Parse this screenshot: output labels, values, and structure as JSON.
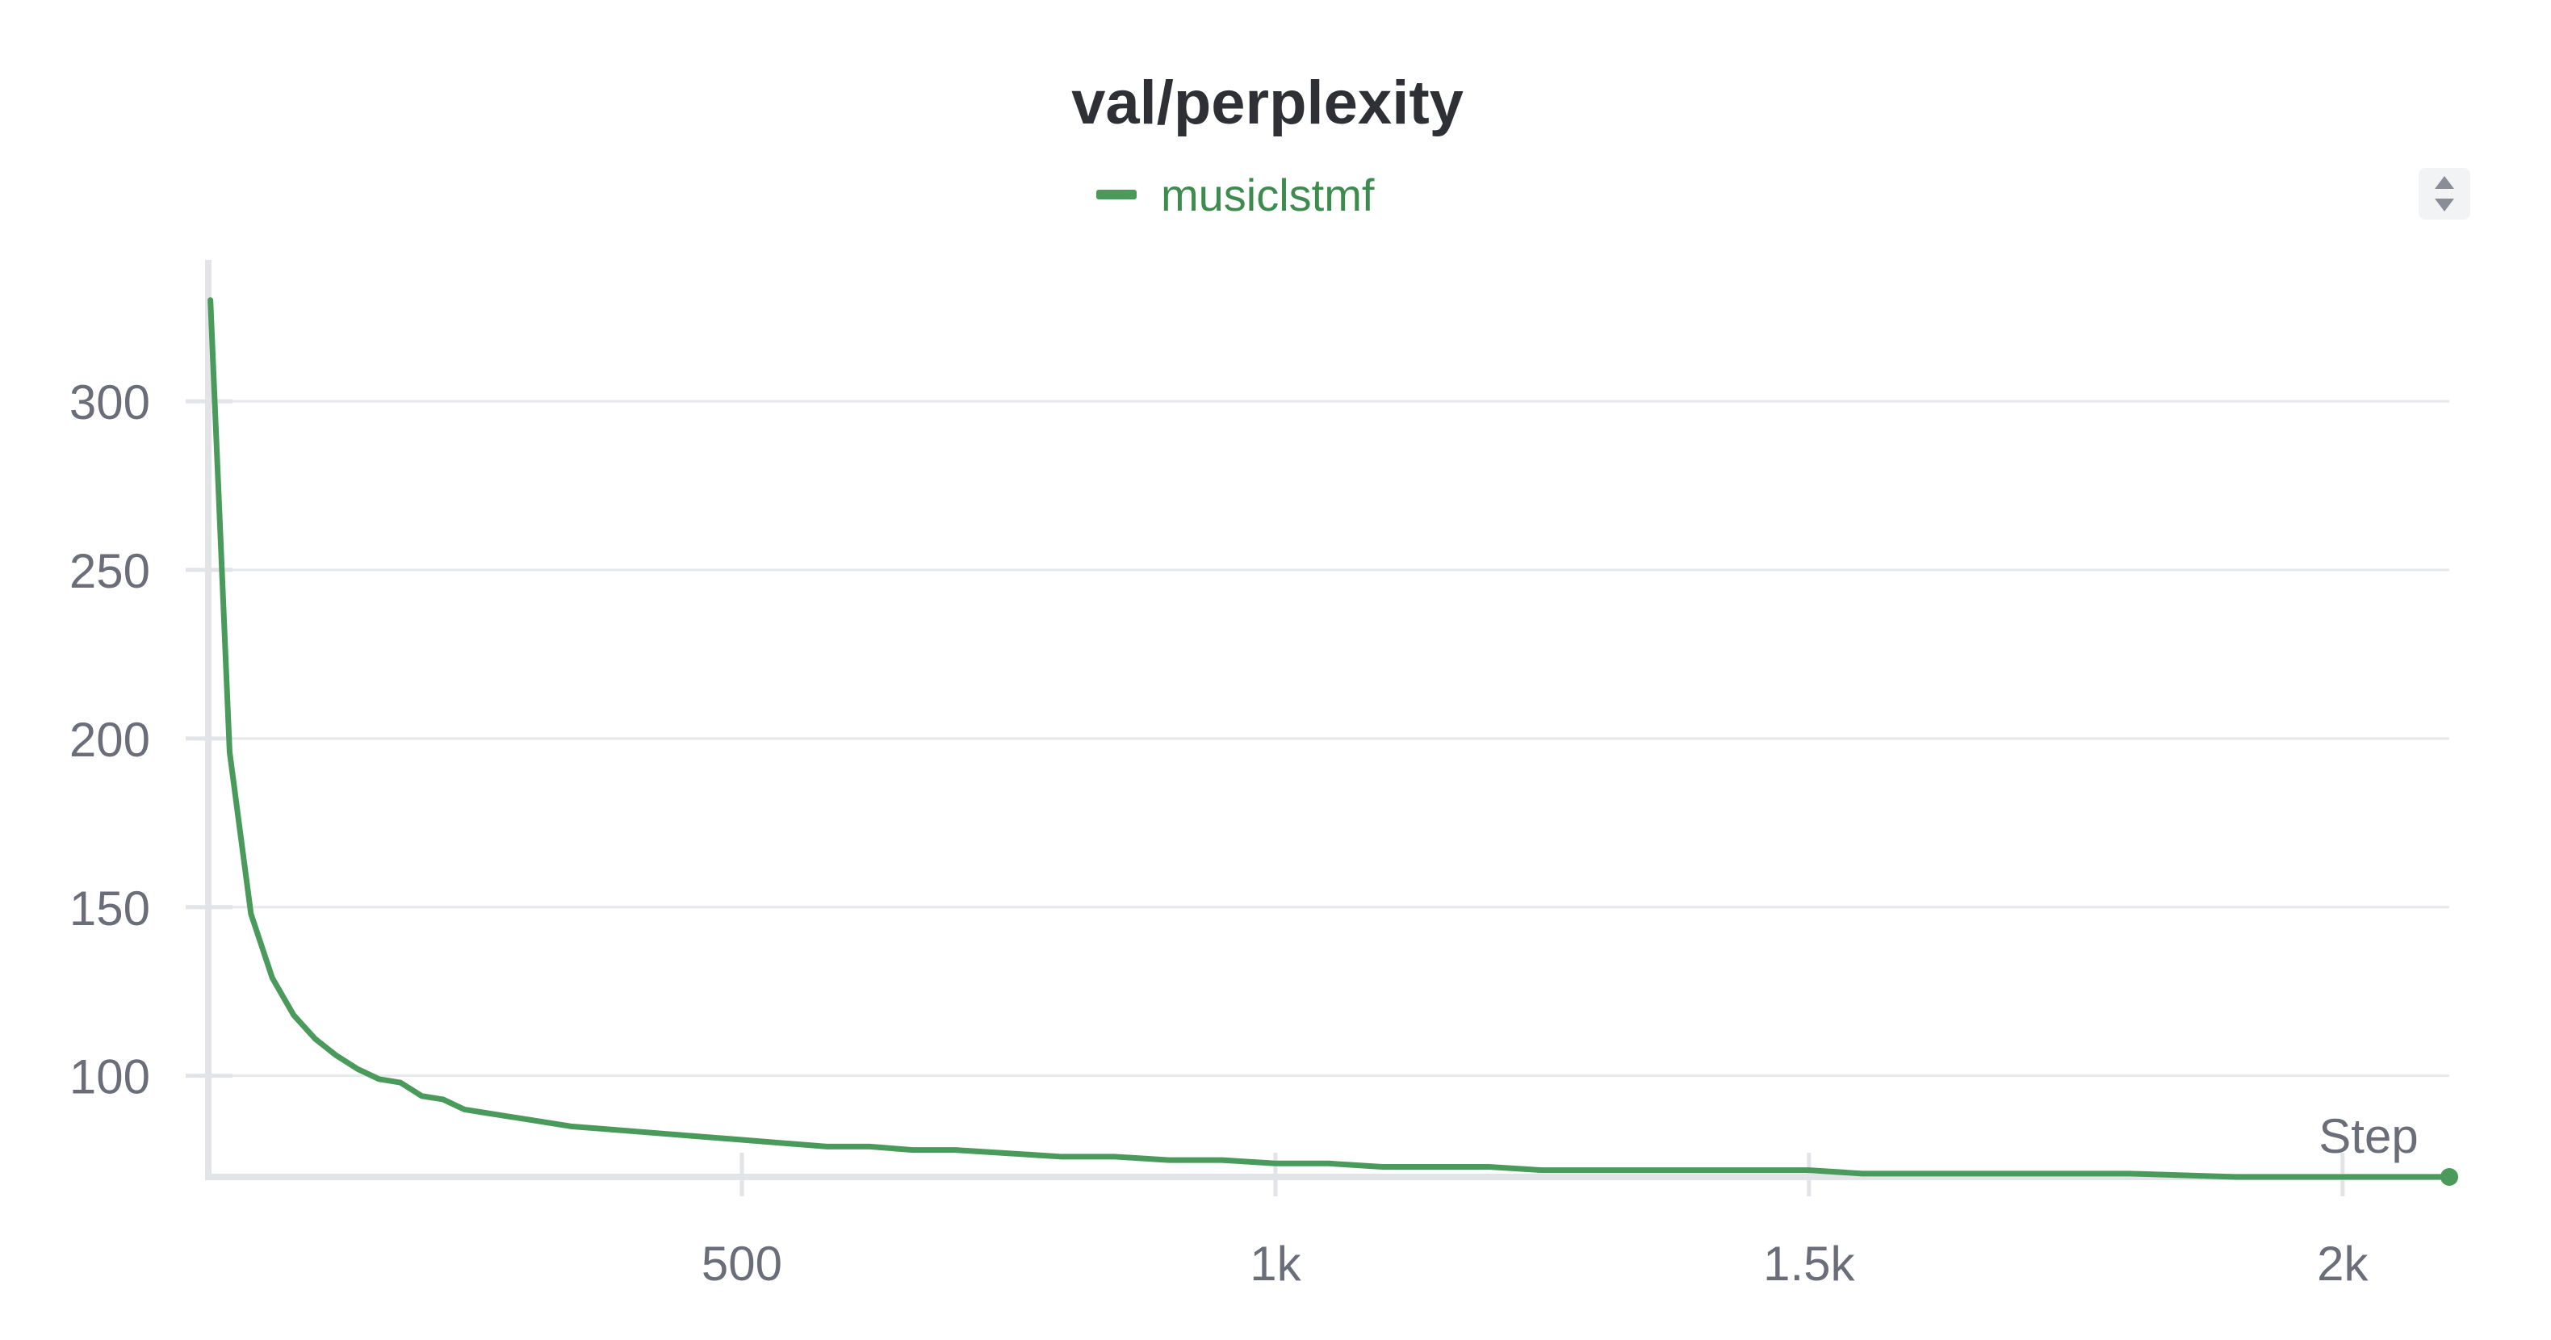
{
  "colors": {
    "series": "#4a9a5c",
    "legend_text": "#3d8b4f",
    "axis": "#e3e4e8",
    "grid": "#e7e8eb",
    "tick_text": "#6b6e78",
    "title": "#2f3035"
  },
  "controls": {
    "legend_sort_icon": "sort-up-down-icon"
  },
  "chart_data": {
    "type": "line",
    "title": "val/perplexity",
    "xlabel": "Step",
    "ylabel": "",
    "xlim": [
      0,
      2100
    ],
    "ylim": [
      70,
      340
    ],
    "x_ticks": [
      500,
      1000,
      1500,
      2000
    ],
    "x_tick_labels": [
      "500",
      "1k",
      "1.5k",
      "2k"
    ],
    "y_ticks": [
      100,
      150,
      200,
      250,
      300
    ],
    "y_tick_labels": [
      "100",
      "150",
      "200",
      "250",
      "300"
    ],
    "grid": "horizontal",
    "legend_position": "top-center",
    "series": [
      {
        "name": "musiclstmf",
        "color": "#4a9a5c",
        "x": [
          2,
          20,
          40,
          60,
          80,
          100,
          120,
          140,
          160,
          180,
          200,
          220,
          240,
          260,
          280,
          300,
          340,
          380,
          420,
          460,
          500,
          540,
          580,
          620,
          660,
          700,
          750,
          800,
          850,
          900,
          950,
          1000,
          1050,
          1100,
          1150,
          1200,
          1250,
          1300,
          1350,
          1400,
          1450,
          1500,
          1550,
          1600,
          1700,
          1800,
          1900,
          2000,
          2100
        ],
        "y": [
          330,
          196,
          148,
          129,
          118,
          111,
          106,
          102,
          99,
          98,
          94,
          93,
          90,
          89,
          88,
          87,
          85,
          84,
          83,
          82,
          81,
          80,
          79,
          79,
          78,
          78,
          77,
          76,
          76,
          75,
          75,
          74,
          74,
          73,
          73,
          73,
          72,
          72,
          72,
          72,
          72,
          72,
          71,
          71,
          71,
          71,
          70,
          70,
          70
        ]
      }
    ]
  }
}
